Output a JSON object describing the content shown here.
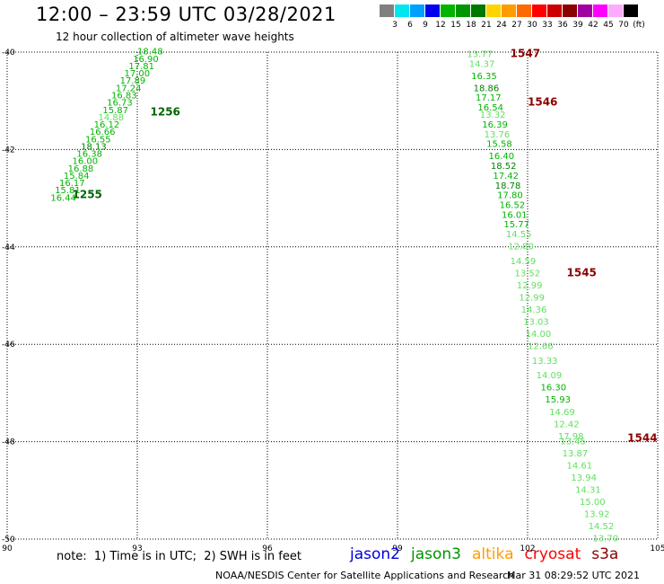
{
  "header": {
    "title": "12:00 – 23:59 UTC 03/28/2021",
    "subtitle": "12 hour collection of altimeter wave heights"
  },
  "legend": {
    "labels": [
      "3",
      "6",
      "9",
      "12",
      "15",
      "18",
      "21",
      "24",
      "27",
      "30",
      "33",
      "36",
      "39",
      "42",
      "45",
      "70",
      "(ft)"
    ],
    "colors": [
      "#808080",
      "#00e5ee",
      "#00a0ff",
      "#0000ee",
      "#00b400",
      "#009600",
      "#007800",
      "#ffd400",
      "#ff9c00",
      "#ff6a00",
      "#ff0000",
      "#cc0000",
      "#8b0000",
      "#a000a0",
      "#ff00ff",
      "#ffaaff",
      "#000000"
    ]
  },
  "map": {
    "lat_labels": [
      "-40",
      "-42",
      "-44",
      "-46",
      "-48",
      "-50"
    ],
    "lon_labels": [
      "90",
      "93",
      "96",
      "99",
      "102",
      "105"
    ],
    "colors": {
      "light": "#60e060",
      "mid": "#00b400",
      "dark": "#008000",
      "pass": "#8b0000",
      "pass_dark": "#006400"
    }
  },
  "chart_data": {
    "type": "scatter",
    "x_unit": "longitude (deg E)",
    "y_unit": "latitude (deg)",
    "xlim": [
      90,
      105
    ],
    "ylim": [
      -50,
      -40
    ],
    "grid": true,
    "tracks": [
      {
        "pass": "1256",
        "pass_lon": 93.3,
        "pass_lat": -41.3,
        "pass_color": "dark",
        "points": [
          {
            "lon": 93.0,
            "lat": -40.05,
            "v": "18.48",
            "c": "mid"
          },
          {
            "lon": 92.9,
            "lat": -40.2,
            "v": "16.90",
            "c": "mid"
          },
          {
            "lon": 92.8,
            "lat": -40.35,
            "v": "17.81",
            "c": "mid"
          },
          {
            "lon": 92.7,
            "lat": -40.5,
            "v": "17.00",
            "c": "mid"
          },
          {
            "lon": 92.6,
            "lat": -40.65,
            "v": "17.89",
            "c": "mid"
          },
          {
            "lon": 92.5,
            "lat": -40.8,
            "v": "17.24",
            "c": "mid"
          },
          {
            "lon": 92.4,
            "lat": -40.95,
            "v": "16.83",
            "c": "mid"
          },
          {
            "lon": 92.3,
            "lat": -41.1,
            "v": "16.73",
            "c": "mid"
          },
          {
            "lon": 92.2,
            "lat": -41.25,
            "v": "15.87",
            "c": "mid"
          },
          {
            "lon": 92.1,
            "lat": -41.4,
            "v": "14.88",
            "c": "light"
          },
          {
            "lon": 92.0,
            "lat": -41.55,
            "v": "16.12",
            "c": "mid"
          },
          {
            "lon": 91.9,
            "lat": -41.7,
            "v": "16.66",
            "c": "mid"
          },
          {
            "lon": 91.8,
            "lat": -41.85,
            "v": "16.55",
            "c": "mid"
          },
          {
            "lon": 91.7,
            "lat": -42.0,
            "v": "18.13",
            "c": "dark"
          },
          {
            "lon": 91.6,
            "lat": -42.15,
            "v": "16.38",
            "c": "mid"
          },
          {
            "lon": 91.5,
            "lat": -42.3,
            "v": "16.00",
            "c": "mid"
          },
          {
            "lon": 91.4,
            "lat": -42.45,
            "v": "16.88",
            "c": "mid"
          },
          {
            "lon": 91.3,
            "lat": -42.6,
            "v": "15.84",
            "c": "mid"
          },
          {
            "lon": 91.2,
            "lat": -42.75,
            "v": "16.17",
            "c": "mid"
          },
          {
            "lon": 91.1,
            "lat": -42.9,
            "v": "15.81",
            "c": "mid"
          },
          {
            "lon": 91.0,
            "lat": -43.05,
            "v": "16.44",
            "c": "mid"
          }
        ]
      },
      {
        "pass": "1255",
        "pass_lon": 91.5,
        "pass_lat": -43.0,
        "pass_color": "dark",
        "points": []
      },
      {
        "pass": "1547",
        "pass_lon": 101.6,
        "pass_lat": -40.1,
        "pass_color": "pass",
        "points": [
          {
            "lon": 100.6,
            "lat": -40.1,
            "v": "13.77",
            "c": "light"
          },
          {
            "lon": 100.65,
            "lat": -40.3,
            "v": "14.37",
            "c": "light"
          },
          {
            "lon": 100.7,
            "lat": -40.55,
            "v": "16.35",
            "c": "mid"
          },
          {
            "lon": 100.75,
            "lat": -40.8,
            "v": "18.86",
            "c": "dark"
          },
          {
            "lon": 100.8,
            "lat": -41.0,
            "v": "17.17",
            "c": "mid"
          },
          {
            "lon": 100.85,
            "lat": -41.2,
            "v": "16.54",
            "c": "mid"
          },
          {
            "lon": 100.9,
            "lat": -41.35,
            "v": "13.32",
            "c": "light"
          },
          {
            "lon": 100.95,
            "lat": -41.55,
            "v": "16.39",
            "c": "mid"
          },
          {
            "lon": 101.0,
            "lat": -41.75,
            "v": "13.76",
            "c": "light"
          },
          {
            "lon": 101.05,
            "lat": -41.95,
            "v": "15.58",
            "c": "mid"
          },
          {
            "lon": 101.1,
            "lat": -42.2,
            "v": "16.40",
            "c": "mid"
          },
          {
            "lon": 101.15,
            "lat": -42.4,
            "v": "18.52",
            "c": "dark"
          },
          {
            "lon": 101.2,
            "lat": -42.6,
            "v": "17.42",
            "c": "mid"
          },
          {
            "lon": 101.25,
            "lat": -42.8,
            "v": "18.78",
            "c": "dark"
          },
          {
            "lon": 101.3,
            "lat": -43.0,
            "v": "17.80",
            "c": "mid"
          },
          {
            "lon": 101.35,
            "lat": -43.2,
            "v": "16.52",
            "c": "mid"
          },
          {
            "lon": 101.4,
            "lat": -43.4,
            "v": "16.01",
            "c": "mid"
          },
          {
            "lon": 101.45,
            "lat": -43.6,
            "v": "15.77",
            "c": "mid"
          }
        ]
      },
      {
        "pass": "1546",
        "pass_lon": 102.0,
        "pass_lat": -41.1,
        "pass_color": "pass",
        "points": []
      },
      {
        "pass": "1545",
        "pass_lon": 102.9,
        "pass_lat": -44.6,
        "pass_color": "pass",
        "points": [
          {
            "lon": 101.5,
            "lat": -43.8,
            "v": "14.55",
            "c": "light"
          },
          {
            "lon": 101.55,
            "lat": -44.05,
            "v": "12.80",
            "c": "light"
          },
          {
            "lon": 101.6,
            "lat": -44.35,
            "v": "14.59",
            "c": "light"
          },
          {
            "lon": 101.7,
            "lat": -44.6,
            "v": "13.52",
            "c": "light"
          },
          {
            "lon": 101.75,
            "lat": -44.85,
            "v": "12.99",
            "c": "light"
          },
          {
            "lon": 101.8,
            "lat": -45.1,
            "v": "12.99",
            "c": "light"
          },
          {
            "lon": 101.85,
            "lat": -45.35,
            "v": "14.36",
            "c": "light"
          },
          {
            "lon": 101.9,
            "lat": -45.6,
            "v": "13.03",
            "c": "light"
          },
          {
            "lon": 101.95,
            "lat": -45.85,
            "v": "14.00",
            "c": "light"
          },
          {
            "lon": 102.0,
            "lat": -46.1,
            "v": "12.66",
            "c": "light"
          },
          {
            "lon": 102.1,
            "lat": -46.4,
            "v": "13.33",
            "c": "light"
          },
          {
            "lon": 102.2,
            "lat": -46.7,
            "v": "14.09",
            "c": "light"
          },
          {
            "lon": 102.3,
            "lat": -46.95,
            "v": "16.30",
            "c": "mid"
          },
          {
            "lon": 102.4,
            "lat": -47.2,
            "v": "15.93",
            "c": "mid"
          },
          {
            "lon": 102.5,
            "lat": -47.45,
            "v": "14.69",
            "c": "light"
          },
          {
            "lon": 102.6,
            "lat": -47.7,
            "v": "12.42",
            "c": "light"
          },
          {
            "lon": 102.7,
            "lat": -47.95,
            "v": "17.98",
            "c": "light"
          }
        ]
      },
      {
        "pass": "1544",
        "pass_lon": 104.3,
        "pass_lat": -48.0,
        "pass_color": "pass",
        "points": [
          {
            "lon": 102.75,
            "lat": -48.05,
            "v": "13.45",
            "c": "light"
          },
          {
            "lon": 102.8,
            "lat": -48.3,
            "v": "13.87",
            "c": "light"
          },
          {
            "lon": 102.9,
            "lat": -48.55,
            "v": "14.61",
            "c": "light"
          },
          {
            "lon": 103.0,
            "lat": -48.8,
            "v": "13.94",
            "c": "light"
          },
          {
            "lon": 103.1,
            "lat": -49.05,
            "v": "14.31",
            "c": "light"
          },
          {
            "lon": 103.2,
            "lat": -49.3,
            "v": "15.00",
            "c": "light"
          },
          {
            "lon": 103.3,
            "lat": -49.55,
            "v": "13.92",
            "c": "light"
          },
          {
            "lon": 103.4,
            "lat": -49.8,
            "v": "14.52",
            "c": "light"
          },
          {
            "lon": 103.5,
            "lat": -50.05,
            "v": "13.70",
            "c": "light"
          }
        ]
      }
    ]
  },
  "footer": {
    "note": "note:  1) Time is in UTC;  2) SWH is in feet",
    "satellites": [
      {
        "name": "jason2",
        "color": "#0000dd"
      },
      {
        "name": "jason3",
        "color": "#009600"
      },
      {
        "name": "altika",
        "color": "#ff9c00"
      },
      {
        "name": "cryosat",
        "color": "#ff0000"
      },
      {
        "name": "s3a",
        "color": "#8b0000"
      }
    ],
    "credit": "NOAA/NESDIS Center for Satellite Applications and Research",
    "timestamp": "Mar 31 08:29:52 UTC 2021"
  }
}
